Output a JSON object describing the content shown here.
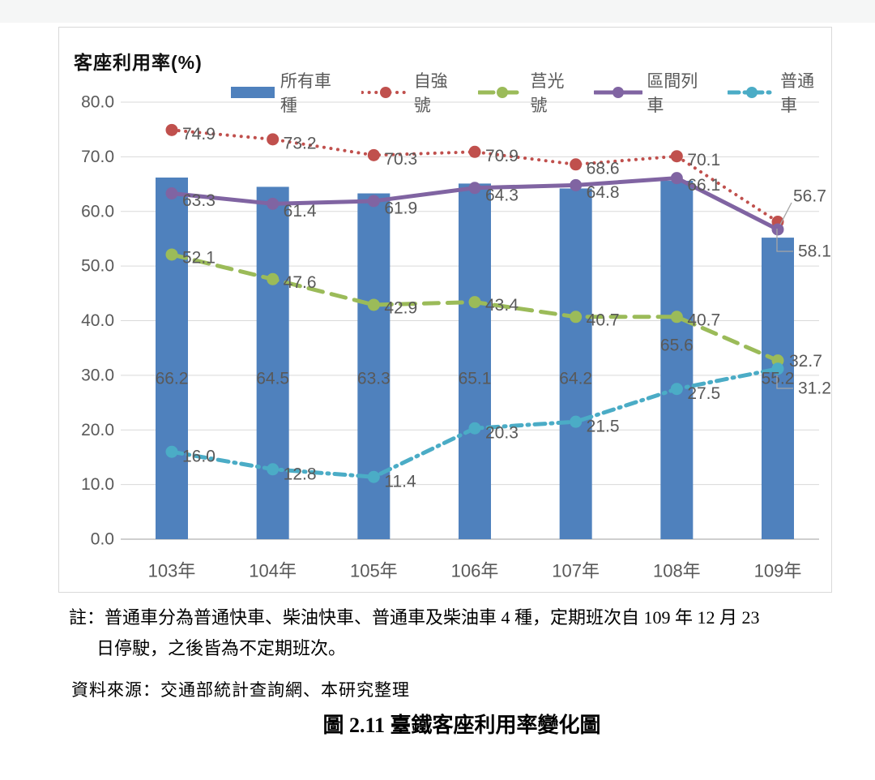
{
  "page": {
    "note": {
      "line1": "註：普通車分為普通快車、柴油快車、普通車及柴油車 4 種，定期班次自 109 年 12 月 23",
      "line2": "日停駛，之後皆為不定期班次。"
    },
    "source": "資料來源：交通部統計查詢網、本研究整理",
    "caption": "圖 2.11  臺鐵客座利用率變化圖"
  },
  "chart_data": {
    "type": "bar+line combo",
    "title": "客座利用率(%)",
    "ylabel": "客座利用率(%)",
    "xlabel": "",
    "categories": [
      "103年",
      "104年",
      "105年",
      "106年",
      "107年",
      "108年",
      "109年"
    ],
    "ylim": [
      0,
      80
    ],
    "ytick_step": 10,
    "ytick_labels": [
      "0.0",
      "10.0",
      "20.0",
      "30.0",
      "40.0",
      "50.0",
      "60.0",
      "70.0",
      "80.0"
    ],
    "grid": true,
    "legend_position": "top",
    "colors": {
      "grid": "#d9d9d9",
      "axis": "#bfbfbf",
      "label_text": "#595959",
      "leader_line": "#a6a6a6"
    },
    "series": [
      {
        "name": "所有車種",
        "type": "bar",
        "color": "#4F81BD",
        "values": [
          66.2,
          64.5,
          63.3,
          65.1,
          64.2,
          65.6,
          55.2
        ]
      },
      {
        "name": "自強號",
        "type": "line",
        "style": "dotted",
        "color": "#C0504D",
        "values": [
          74.9,
          73.2,
          70.3,
          70.9,
          68.6,
          70.1,
          58.1
        ]
      },
      {
        "name": "莒光號",
        "type": "line",
        "style": "dashed",
        "color": "#9BBB59",
        "values": [
          52.1,
          47.6,
          42.9,
          43.4,
          40.7,
          40.7,
          32.7
        ]
      },
      {
        "name": "區間列車",
        "type": "line",
        "style": "solid",
        "color": "#8064A2",
        "values": [
          63.3,
          61.4,
          61.9,
          64.3,
          64.8,
          66.1,
          56.7
        ]
      },
      {
        "name": "普通車",
        "type": "line",
        "style": "dashdot",
        "color": "#4BACC6",
        "values": [
          16.0,
          12.8,
          11.4,
          20.3,
          21.5,
          27.5,
          31.2
        ]
      }
    ]
  }
}
